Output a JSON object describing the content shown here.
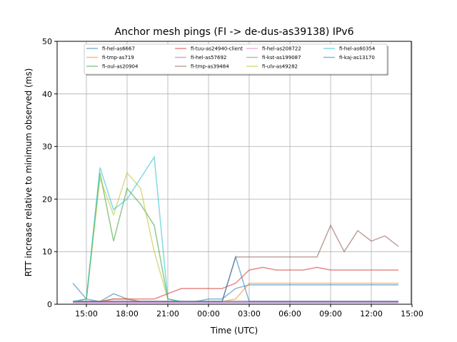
{
  "chart_data": {
    "type": "line",
    "title": "Anchor mesh pings (FI -> de-dus-as39138) IPv6",
    "xlabel": "Time (UTC)",
    "ylabel": "RTT increase relative to minimum observed (ms)",
    "ylim": [
      0,
      50
    ],
    "yticks": [
      "0",
      "10",
      "20",
      "30",
      "40",
      "50"
    ],
    "xticks": [
      "15:00",
      "18:00",
      "21:00",
      "00:00",
      "03:00",
      "06:00",
      "09:00",
      "12:00",
      "15:00"
    ],
    "grid": true,
    "legend_position": "top-center",
    "x": [
      "14:00",
      "15:00",
      "16:00",
      "17:00",
      "18:00",
      "19:00",
      "20:00",
      "21:00",
      "22:00",
      "23:00",
      "00:00",
      "01:00",
      "02:00",
      "03:00",
      "04:00",
      "05:00",
      "06:00",
      "07:00",
      "08:00",
      "09:00",
      "10:00",
      "11:00",
      "12:00",
      "13:00",
      "14:00"
    ],
    "series": [
      {
        "name": "fi-hel-as6667",
        "color": "#1f77b4",
        "values": [
          4,
          1,
          0.5,
          2,
          1,
          0.5,
          0.5,
          0.5,
          0.5,
          0.5,
          1,
          1,
          3,
          3.7,
          3.7,
          3.7,
          3.7,
          3.7,
          3.7,
          3.7,
          3.7,
          3.7,
          3.7,
          3.7,
          3.7
        ]
      },
      {
        "name": "fi-tmp-as719",
        "color": "#ff7f0e",
        "values": [
          0.5,
          0.5,
          0.5,
          1,
          1,
          0.5,
          0.5,
          0.5,
          0.5,
          0.5,
          0.5,
          0.5,
          1,
          4,
          4,
          4,
          4,
          4,
          4,
          4,
          4,
          4,
          4,
          4,
          4
        ]
      },
      {
        "name": "fi-oul-as20904",
        "color": "#2ca02c",
        "values": [
          0.5,
          1,
          25,
          12,
          22,
          19,
          15,
          1,
          0.5,
          0.5,
          0.5,
          0.5,
          0.5,
          0.5,
          0.5,
          0.5,
          0.5,
          0.5,
          0.5,
          0.5,
          0.5,
          0.5,
          0.5,
          0.5,
          0.5
        ]
      },
      {
        "name": "fi-tuu-as24940-client",
        "color": "#d62728",
        "values": [
          0.5,
          0.5,
          0.5,
          1,
          1,
          1,
          1,
          2,
          3,
          3,
          3,
          3,
          4,
          6.5,
          7,
          6.5,
          6.5,
          6.5,
          7,
          6.5,
          6.5,
          6.5,
          6.5,
          6.5,
          6.5
        ]
      },
      {
        "name": "fi-hel-as57692",
        "color": "#9467bd",
        "values": [
          0.3,
          0.3,
          0.3,
          0.3,
          0.3,
          0.3,
          0.3,
          0.3,
          0.3,
          0.3,
          0.3,
          0.3,
          0.3,
          0.3,
          0.3,
          0.3,
          0.3,
          0.3,
          0.3,
          0.3,
          0.3,
          0.3,
          0.3,
          0.3,
          0.3
        ]
      },
      {
        "name": "fi-tmp-as39484",
        "color": "#8c564b",
        "values": [
          0.5,
          0.5,
          0.5,
          0.5,
          0.5,
          0.5,
          0.5,
          0.5,
          0.5,
          0.5,
          0.5,
          0.5,
          9,
          9,
          9,
          9,
          9,
          9,
          9,
          15,
          10,
          14,
          12,
          13,
          11
        ]
      },
      {
        "name": "fi-hel-as208722",
        "color": "#e377c2",
        "values": [
          0.4,
          0.4,
          0.4,
          0.4,
          0.4,
          0.4,
          0.4,
          0.4,
          0.4,
          0.4,
          0.4,
          0.4,
          0.4,
          0.4,
          0.4,
          0.4,
          0.4,
          0.4,
          0.4,
          0.4,
          0.4,
          0.4,
          0.4,
          0.4,
          0.4
        ]
      },
      {
        "name": "fi-kst-as199087",
        "color": "#7f7f7f",
        "values": [
          0.6,
          0.6,
          0.6,
          0.6,
          0.6,
          0.6,
          0.6,
          0.6,
          0.6,
          0.6,
          0.6,
          0.6,
          0.6,
          0.6,
          0.6,
          0.6,
          0.6,
          0.6,
          0.6,
          0.6,
          0.6,
          0.6,
          0.6,
          0.6,
          0.6
        ]
      },
      {
        "name": "fi-ulv-as49282",
        "color": "#bcbd22",
        "values": [
          0.5,
          1,
          24,
          17,
          25,
          22,
          10,
          1,
          0.5,
          0.5,
          0.5,
          0.5,
          0.5,
          0.5,
          0.5,
          0.5,
          0.5,
          0.5,
          0.5,
          0.5,
          0.5,
          0.5,
          0.5,
          0.5,
          0.5
        ]
      },
      {
        "name": "fi-hel-as60354",
        "color": "#17becf",
        "values": [
          0.5,
          1,
          26,
          18,
          20,
          24,
          28,
          1,
          0.5,
          0.5,
          0.5,
          0.5,
          0.5,
          0.5,
          0.5,
          0.5,
          0.5,
          0.5,
          0.5,
          0.5,
          0.5,
          0.5,
          0.5,
          0.5,
          0.5
        ]
      },
      {
        "name": "fi-kaj-as13170",
        "color": "#1f77b4",
        "values": [
          0.5,
          0.5,
          0.5,
          0.5,
          0.5,
          0.5,
          0.5,
          0.5,
          0.5,
          0.5,
          0.5,
          0.5,
          9,
          0.5,
          0.5,
          0.5,
          0.5,
          0.5,
          0.5,
          0.5,
          0.5,
          0.5,
          0.5,
          0.5,
          0.5
        ]
      }
    ]
  }
}
